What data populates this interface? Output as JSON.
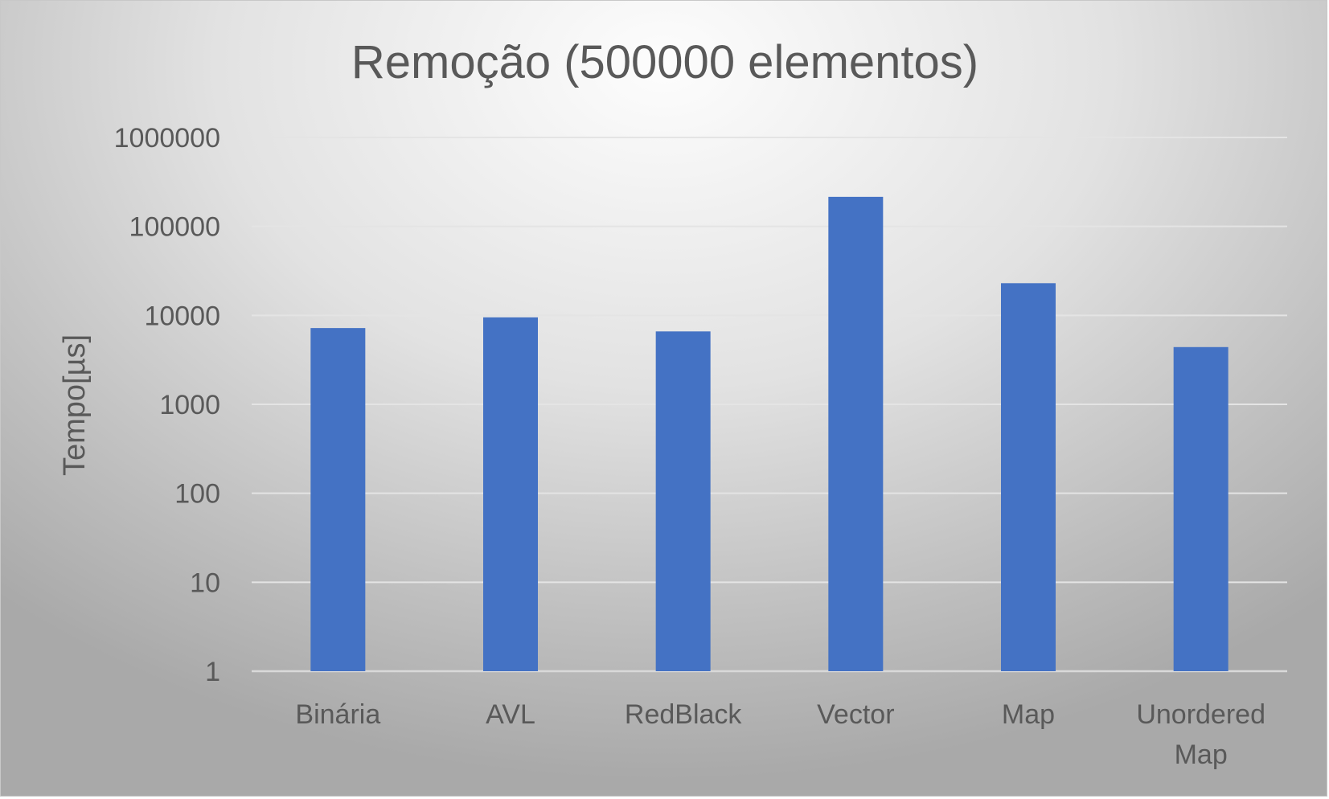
{
  "chart_data": {
    "type": "bar",
    "title": "Remoção (500000 elementos)",
    "xlabel": "",
    "ylabel": "Tempo[µs]",
    "yscale": "log",
    "ylim": [
      1,
      1000000
    ],
    "yticks": [
      "1",
      "10",
      "100",
      "1000",
      "10000",
      "100000",
      "1000000"
    ],
    "categories": [
      [
        "Binária"
      ],
      [
        "AVL"
      ],
      [
        "RedBlack"
      ],
      [
        "Vector"
      ],
      [
        "Map"
      ],
      [
        "Unordered",
        "Map"
      ]
    ],
    "values": [
      7200,
      9500,
      6600,
      215000,
      23000,
      4400
    ],
    "grid": true,
    "legend": "none",
    "colors": {
      "bar": "#4472C4",
      "grid": "#e4e4e4",
      "text": "#595959"
    }
  }
}
